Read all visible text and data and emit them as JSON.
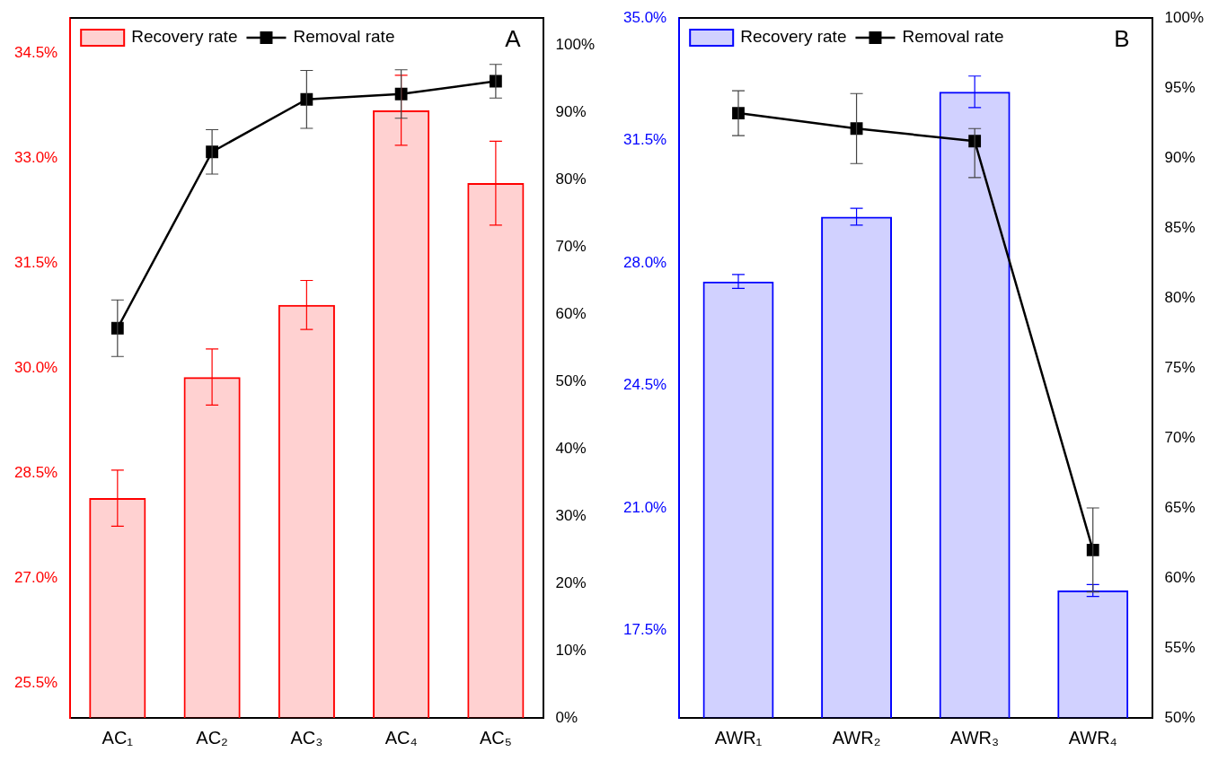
{
  "chart_data": [
    {
      "type": "bar",
      "categories": [
        "AC₁",
        "AC₂",
        "AC₃",
        "AC₄",
        "AC₅"
      ],
      "annotations": [
        "A"
      ],
      "legend": "top left",
      "grid": false,
      "marker": "square",
      "ylim": [
        25,
        35
      ],
      "yticks": [
        {
          "value": 25.5,
          "label": "25.5%"
        },
        {
          "value": 27,
          "label": "27.0%"
        },
        {
          "value": 28.5,
          "label": "28.5%"
        },
        {
          "value": 30,
          "label": "30.0%"
        },
        {
          "value": 31.5,
          "label": "31.5%"
        },
        {
          "value": 33,
          "label": "33.0%"
        },
        {
          "value": 34.5,
          "label": "34.5%"
        }
      ],
      "y2lim": [
        0,
        104
      ],
      "y2ticks": [
        {
          "value": 0,
          "label": "0%"
        },
        {
          "value": 10,
          "label": "10%"
        },
        {
          "value": 20,
          "label": "20%"
        },
        {
          "value": 30,
          "label": "30%"
        },
        {
          "value": 40,
          "label": "40%"
        },
        {
          "value": 50,
          "label": "50%"
        },
        {
          "value": 60,
          "label": "60%"
        },
        {
          "value": 70,
          "label": "70%"
        },
        {
          "value": 80,
          "label": "80%"
        },
        {
          "value": 90,
          "label": "90%"
        },
        {
          "value": 100,
          "label": "100%"
        }
      ],
      "series": [
        {
          "name": "Recovery rate",
          "type": "bar",
          "color": "#ff0000",
          "values": [
            28.14,
            29.87,
            30.9,
            33.68,
            32.64
          ],
          "errors": [
            0.4,
            0.4,
            0.35,
            0.5,
            0.6
          ]
        },
        {
          "name": "Removal rate",
          "type": "line",
          "axis": "y2",
          "color": "#000000",
          "values": [
            57.9,
            84.1,
            91.9,
            92.7,
            94.6
          ],
          "errors": [
            4.2,
            3.3,
            4.3,
            3.6,
            2.5
          ]
        }
      ]
    },
    {
      "type": "bar",
      "categories": [
        "AWR₁",
        "AWR₂",
        "AWR₃",
        "AWR₄"
      ],
      "annotations": [
        "B"
      ],
      "legend": "top left",
      "grid": false,
      "marker": "square",
      "ylim": [
        15,
        35
      ],
      "yticks": [
        {
          "value": 17.5,
          "label": "17.5%"
        },
        {
          "value": 21,
          "label": "21.0%"
        },
        {
          "value": 24.5,
          "label": "24.5%"
        },
        {
          "value": 28,
          "label": "28.0%"
        },
        {
          "value": 31.5,
          "label": "31.5%"
        },
        {
          "value": 35,
          "label": "35.0%"
        }
      ],
      "y2lim": [
        50,
        100
      ],
      "y2ticks": [
        {
          "value": 50,
          "label": "50%"
        },
        {
          "value": 55,
          "label": "55%"
        },
        {
          "value": 60,
          "label": "60%"
        },
        {
          "value": 65,
          "label": "65%"
        },
        {
          "value": 70,
          "label": "70%"
        },
        {
          "value": 75,
          "label": "75%"
        },
        {
          "value": 80,
          "label": "80%"
        },
        {
          "value": 85,
          "label": "85%"
        },
        {
          "value": 90,
          "label": "90%"
        },
        {
          "value": 95,
          "label": "95%"
        },
        {
          "value": 100,
          "label": "100%"
        }
      ],
      "series": [
        {
          "name": "Recovery rate",
          "type": "bar",
          "color": "#0000ff",
          "values": [
            27.47,
            29.32,
            32.89,
            18.64
          ],
          "errors": [
            0.2,
            0.24,
            0.45,
            0.17
          ]
        },
        {
          "name": "Removal rate",
          "type": "line",
          "axis": "y2",
          "color": "#000000",
          "values": [
            93.2,
            92.1,
            91.2,
            62.0
          ],
          "errors": [
            1.6,
            2.5,
            [
              88.6,
              92.1
            ],
            3.0
          ]
        }
      ]
    }
  ]
}
